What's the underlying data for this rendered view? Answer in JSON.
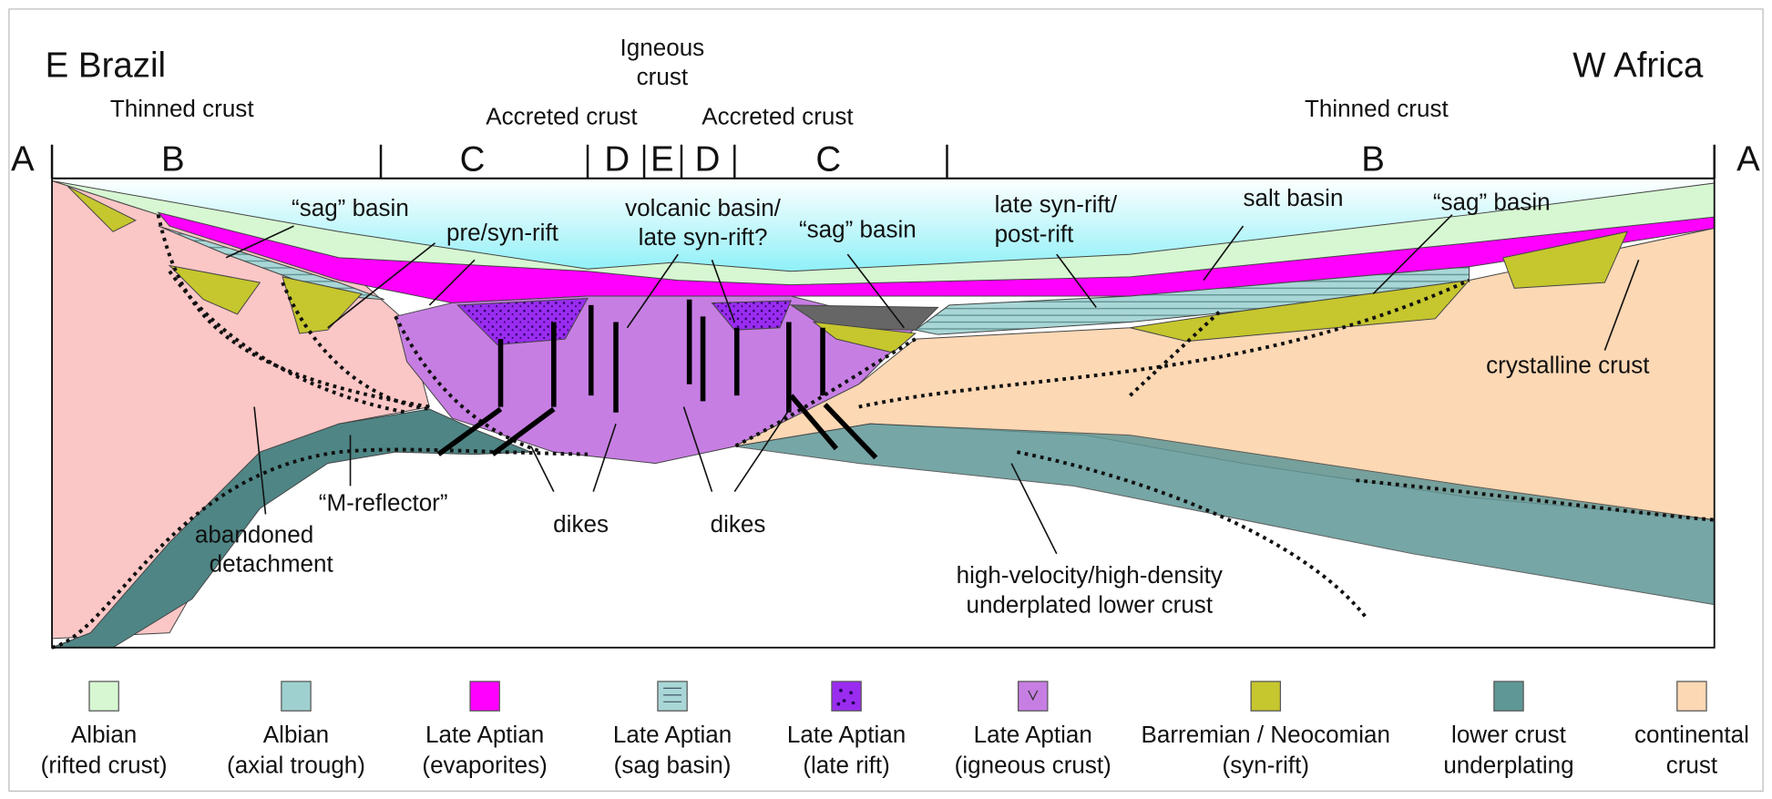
{
  "title_left": "E Brazil",
  "title_right": "W Africa",
  "top_labels": {
    "igneous_crust": [
      "Igneous",
      "crust"
    ],
    "thinned_left": "Thinned crust",
    "accreted_left": "Accreted crust",
    "accreted_right": "Accreted crust",
    "thinned_right": "Thinned crust"
  },
  "section_markers": [
    "A",
    "B",
    "C",
    "D",
    "E",
    "D",
    "C",
    "B",
    "A"
  ],
  "annotations": {
    "sag_basin_left": "“sag” basin",
    "pre_syn_rift": "pre/syn-rift",
    "volcanic_basin": [
      "volcanic basin/",
      "late syn-rift?"
    ],
    "sag_basin_center": "“sag” basin",
    "late_syn_rift": [
      "late syn-rift/",
      "post-rift"
    ],
    "salt_basin": "salt basin",
    "sag_basin_right": "“sag” basin",
    "crystalline_crust": "crystalline crust",
    "m_reflector": "“M-reflector”",
    "abandoned_detachment": [
      "abandoned",
      "detachment"
    ],
    "dikes_left": "dikes",
    "dikes_right": "dikes",
    "underplated": [
      "high-velocity/high-density",
      "underplated lower crust"
    ]
  },
  "legend": [
    {
      "color": "#d6f7d2",
      "label": [
        "Albian",
        "(rifted crust)"
      ]
    },
    {
      "color": "#9fd0d0",
      "label": [
        "Albian",
        "(axial trough)"
      ]
    },
    {
      "color": "#ff00ff",
      "label": [
        "Late Aptian",
        "(evaporites)"
      ]
    },
    {
      "color": "#a9d6d6",
      "label": [
        "Late Aptian",
        "(sag basin)"
      ]
    },
    {
      "color": "#9a2cf0",
      "label": [
        "Late Aptian",
        "(late rift)"
      ]
    },
    {
      "color": "#c77ee3",
      "label": [
        "Late Aptian",
        "(igneous crust)"
      ]
    },
    {
      "color": "#c6c62e",
      "label": [
        "Barremian / Neocomian",
        "(syn-rift)"
      ]
    },
    {
      "color": "#5f9797",
      "label": [
        "lower crust",
        "underplating"
      ]
    },
    {
      "color": "#fcd8b4",
      "label": [
        "continental",
        "crust"
      ]
    }
  ]
}
